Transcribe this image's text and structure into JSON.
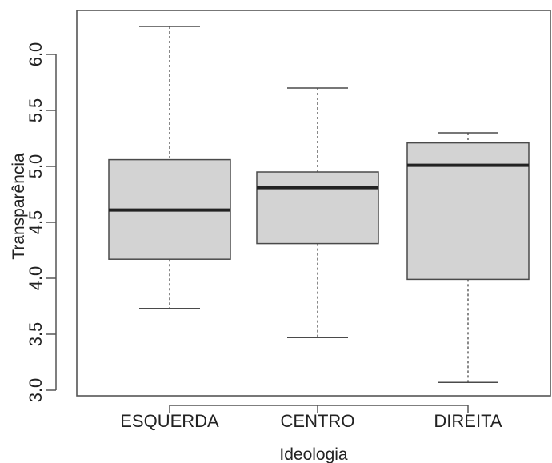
{
  "chart_data": {
    "type": "boxplot",
    "title": "",
    "xlabel": "Ideologia",
    "ylabel": "Transparência",
    "categories": [
      "ESQUERDA",
      "CENTRO",
      "DIREITA"
    ],
    "boxes": [
      {
        "category": "ESQUERDA",
        "min": 3.73,
        "q1": 4.17,
        "median": 4.61,
        "q3": 5.06,
        "max": 6.25
      },
      {
        "category": "CENTRO",
        "min": 3.47,
        "q1": 4.31,
        "median": 4.81,
        "q3": 4.95,
        "max": 5.7
      },
      {
        "category": "DIREITA",
        "min": 3.07,
        "q1": 3.99,
        "median": 5.01,
        "q3": 5.21,
        "max": 5.3
      }
    ],
    "yticks": [
      3.0,
      3.5,
      4.0,
      4.5,
      5.0,
      5.5,
      6.0
    ],
    "ytick_labels": [
      "3.0",
      "3.5",
      "4.0",
      "4.5",
      "5.0",
      "5.5",
      "6.0"
    ],
    "ylim": [
      2.98,
      6.4
    ],
    "grid": false,
    "legend": "none",
    "colors": {
      "box_fill": "#d3d3d3",
      "box_stroke": "#4a4a4a",
      "median": "#222222",
      "whisker": "#4a4a4a",
      "axis": "#555555"
    }
  }
}
